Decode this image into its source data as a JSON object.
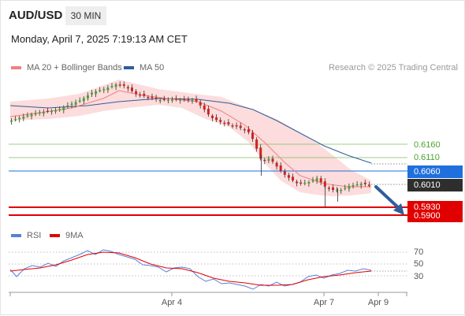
{
  "header": {
    "pair": "AUD/USD",
    "timeframe": "30 MIN",
    "datetime": "Monday, April 7, 2025 7:19:13 AM CET"
  },
  "legend": {
    "ma20": "MA 20 + Bollinger Bands",
    "ma50": "MA 50",
    "ma20_color": "#f08080",
    "ma50_color": "#2f5d9b",
    "credit": "Research © 2025 Trading Central"
  },
  "levels": {
    "r2": "0.6160",
    "r1": "0.6110",
    "pivot": "0.6060",
    "last": "0.6010",
    "s1": "0.5930",
    "s2": "0.5900"
  },
  "rsi_legend": {
    "rsi": "RSI",
    "ma": "9MA",
    "rsi_color": "#5a7fd8",
    "ma_color": "#e00000"
  },
  "rsi_ticks": [
    "70",
    "50",
    "30"
  ],
  "x_labels": [
    "Apr 4",
    "Apr 7",
    "Apr 9"
  ],
  "colors": {
    "pivot_blue": "#1f6fde",
    "support_red": "#e00000",
    "resistance_green": "#7cbf5a"
  }
}
